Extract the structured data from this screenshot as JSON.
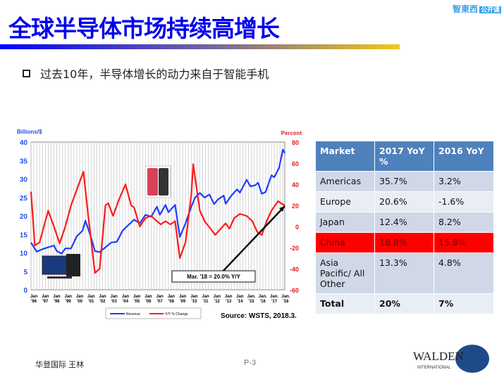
{
  "title": "全球半导体市场持续高增长",
  "logo": {
    "name": "智東西",
    "badge": "公开课"
  },
  "bullet": "过去10年，半导体增长的动力来自于智能手机",
  "chart_data": {
    "type": "line",
    "y_left_label": "Billions/$",
    "y_right_label": "Percent",
    "y_left_range": [
      0,
      40
    ],
    "y_left_ticks": [
      0,
      5,
      10,
      15,
      20,
      25,
      30,
      35,
      40
    ],
    "y_right_range": [
      -60,
      80
    ],
    "y_right_ticks": [
      -60,
      -40,
      -20,
      0,
      20,
      40,
      60,
      80
    ],
    "x_range": [
      "1996-01",
      "2018-03"
    ],
    "x_ticks": [
      [
        "Jan",
        "'96"
      ],
      [
        "Jan",
        "'97"
      ],
      [
        "Jan",
        "'98"
      ],
      [
        "Jan",
        "'99"
      ],
      [
        "Jan",
        "'00"
      ],
      [
        "Jan",
        "'01"
      ],
      [
        "Jan",
        "'02"
      ],
      [
        "Jan",
        "'03"
      ],
      [
        "Jan",
        "'04"
      ],
      [
        "Jan",
        "'05"
      ],
      [
        "Jan",
        "'06"
      ],
      [
        "Jan",
        "'07"
      ],
      [
        "Jan",
        "'08"
      ],
      [
        "Jan",
        "'09"
      ],
      [
        "Jan",
        "'10"
      ],
      [
        "Jan",
        "'11"
      ],
      [
        "Jan",
        "'12"
      ],
      [
        "Jan",
        "'13"
      ],
      [
        "Jan",
        "'14"
      ],
      [
        "Jan.",
        "'15"
      ],
      [
        "Jan.",
        "'16"
      ],
      [
        "Jan.",
        "'17"
      ],
      [
        "Jan.",
        "'18"
      ]
    ],
    "grid": "vertical",
    "legend_placement": "bottom",
    "series": [
      {
        "name": "Revenue",
        "axis": "left",
        "color": "#1f3bff",
        "points": [
          [
            "1996-01",
            12.8
          ],
          [
            "1996-07",
            10.3
          ],
          [
            "1997-01",
            11
          ],
          [
            "1997-07",
            11.5
          ],
          [
            "1998-01",
            12
          ],
          [
            "1998-04",
            10.5
          ],
          [
            "1998-09",
            9.8
          ],
          [
            "1999-01",
            11.2
          ],
          [
            "1999-07",
            11.2
          ],
          [
            "2000-01",
            14.5
          ],
          [
            "2000-07",
            16
          ],
          [
            "2000-10",
            18.7
          ],
          [
            "2001-03",
            15
          ],
          [
            "2001-08",
            10.5
          ],
          [
            "2002-01",
            10.2
          ],
          [
            "2002-07",
            11.5
          ],
          [
            "2003-01",
            12.8
          ],
          [
            "2003-07",
            13
          ],
          [
            "2004-01",
            16
          ],
          [
            "2004-07",
            17.5
          ],
          [
            "2005-01",
            19
          ],
          [
            "2005-07",
            18
          ],
          [
            "2006-01",
            20.3
          ],
          [
            "2006-07",
            19.8
          ],
          [
            "2007-01",
            22.5
          ],
          [
            "2007-04",
            20.3
          ],
          [
            "2007-10",
            23
          ],
          [
            "2008-01",
            21
          ],
          [
            "2008-08",
            23
          ],
          [
            "2009-01",
            14.3
          ],
          [
            "2009-07",
            18
          ],
          [
            "2010-01",
            22.5
          ],
          [
            "2010-05",
            25
          ],
          [
            "2010-10",
            26.2
          ],
          [
            "2011-03",
            25
          ],
          [
            "2011-08",
            25.8
          ],
          [
            "2012-01",
            23.2
          ],
          [
            "2012-05",
            24.5
          ],
          [
            "2012-11",
            25.5
          ],
          [
            "2013-01",
            23.3
          ],
          [
            "2013-07",
            25.5
          ],
          [
            "2014-01",
            27.2
          ],
          [
            "2014-04",
            26.3
          ],
          [
            "2014-11",
            29.8
          ],
          [
            "2015-03",
            28
          ],
          [
            "2015-08",
            28.3
          ],
          [
            "2015-11",
            29
          ],
          [
            "2016-03",
            26
          ],
          [
            "2016-07",
            26.5
          ],
          [
            "2017-01",
            31
          ],
          [
            "2017-04",
            30.5
          ],
          [
            "2017-09",
            33
          ],
          [
            "2018-01",
            38
          ],
          [
            "2018-03",
            37
          ]
        ]
      },
      {
        "name": "Y/Y % Change",
        "axis": "right",
        "color": "#ff1a1a",
        "points": [
          [
            "1996-01",
            33
          ],
          [
            "1996-05",
            -18
          ],
          [
            "1996-10",
            -15
          ],
          [
            "1997-07",
            15
          ],
          [
            "1998-01",
            0
          ],
          [
            "1998-07",
            -16
          ],
          [
            "1999-01",
            0
          ],
          [
            "1999-07",
            20
          ],
          [
            "2000-01",
            35
          ],
          [
            "2000-08",
            52
          ],
          [
            "2001-01",
            10
          ],
          [
            "2001-08",
            -44
          ],
          [
            "2002-01",
            -40
          ],
          [
            "2002-07",
            20
          ],
          [
            "2002-10",
            22
          ],
          [
            "2003-03",
            10
          ],
          [
            "2003-09",
            25
          ],
          [
            "2004-04",
            40
          ],
          [
            "2004-10",
            20
          ],
          [
            "2005-01",
            18
          ],
          [
            "2005-07",
            0
          ],
          [
            "2006-01",
            8
          ],
          [
            "2006-07",
            10
          ],
          [
            "2007-01",
            5
          ],
          [
            "2007-05",
            2
          ],
          [
            "2007-10",
            5
          ],
          [
            "2008-03",
            2
          ],
          [
            "2008-08",
            5
          ],
          [
            "2009-01",
            -30
          ],
          [
            "2009-07",
            -15
          ],
          [
            "2010-01",
            30
          ],
          [
            "2010-03",
            59
          ],
          [
            "2010-10",
            15
          ],
          [
            "2011-03",
            5
          ],
          [
            "2011-10",
            -3
          ],
          [
            "2012-02",
            -8
          ],
          [
            "2012-07",
            -3
          ],
          [
            "2013-01",
            3
          ],
          [
            "2013-05",
            -2
          ],
          [
            "2013-10",
            8
          ],
          [
            "2014-04",
            12
          ],
          [
            "2014-11",
            10
          ],
          [
            "2015-05",
            5
          ],
          [
            "2015-10",
            -5
          ],
          [
            "2016-03",
            -8
          ],
          [
            "2016-08",
            5
          ],
          [
            "2017-01",
            15
          ],
          [
            "2017-08",
            24
          ],
          [
            "2017-11",
            22
          ],
          [
            "2018-03",
            20
          ]
        ]
      }
    ],
    "annotation": "Mar. '18 = 20.0% Y/Y",
    "source": "Source: WSTS, 2018.3."
  },
  "table": {
    "headers": [
      "Market",
      "2017 YoY %",
      "2016 YoY"
    ],
    "rows": [
      [
        "Americas",
        "35.7%",
        "3.2%"
      ],
      [
        "Europe",
        "20.6%",
        "-1.6%"
      ],
      [
        "Japan",
        "12.4%",
        "8.2%"
      ],
      [
        "China",
        "18.8%",
        "15.8%"
      ],
      [
        "Asia Pacific/ All Other",
        "13.3%",
        "4.8%"
      ],
      [
        "Total",
        "20%",
        "7%"
      ]
    ],
    "highlight_row": "China",
    "highlight_color": "#ff0000",
    "header_color": "#4f81bd"
  },
  "footer": {
    "author": "华登国际 王林",
    "page": "P-3",
    "brand": "WALDEN",
    "brand_sub": "INTERNATIONAL"
  }
}
